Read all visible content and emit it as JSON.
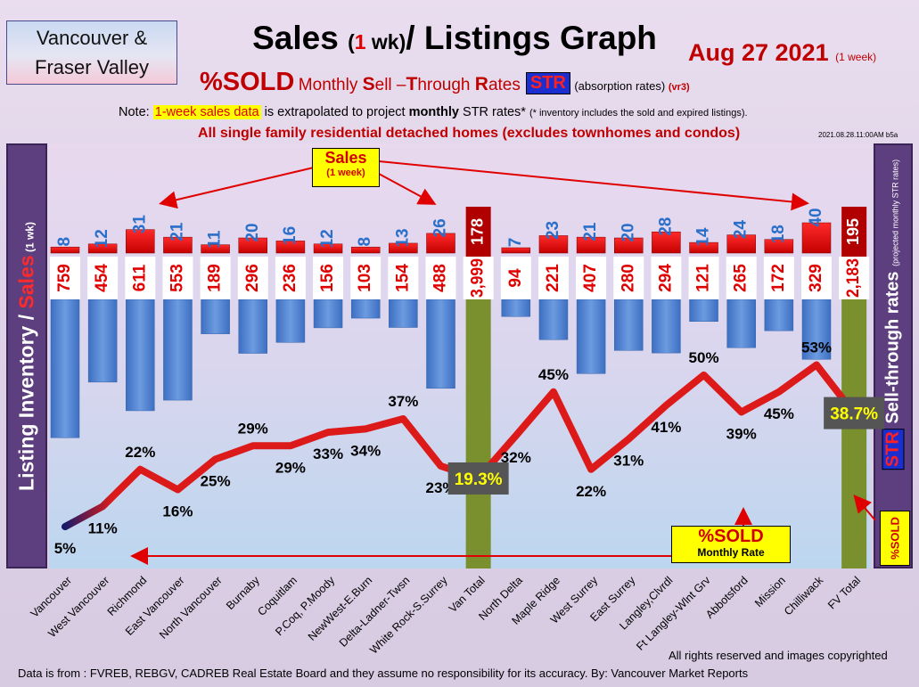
{
  "header": {
    "region_line1": "Vancouver &",
    "region_line2": "Fraser Valley",
    "title_a": "Sales",
    "title_b": "(",
    "title_c": "1",
    "title_d": " wk)",
    "title_e": "/ Listings Graph",
    "date": "Aug 27  2021",
    "date_note": "(1 week)",
    "subtitle_a": "%SOLD",
    "subtitle_b": "Monthly ",
    "subtitle_c": "S",
    "subtitle_d": "ell –",
    "subtitle_e": "T",
    "subtitle_f": "hrough ",
    "subtitle_g": "R",
    "subtitle_h": "ates",
    "str_badge": "STR",
    "absorb": "(absorption rates)",
    "version": "(vr3)",
    "note_a": "Note: ",
    "note_b": "1-week sales data",
    "note_c": " is extrapolated to project ",
    "note_d": "monthly",
    "note_e": " STR rates* ",
    "note_f": "(* inventory includes the sold and expired listings).",
    "detached": "All single family residential detached homes (excludes townhomes and condos)",
    "stamp": "2021.08.28.11:00AM b5a"
  },
  "side": {
    "left_a": "Listing Inventory ",
    "left_b": "/ ",
    "left_c": "Sales",
    "left_d": " (1 wk)",
    "right_a": "Sell-through rates ",
    "right_b": "(projected monthly STR rates)",
    "right_str": "STR",
    "right_sold": "%SOLD"
  },
  "callouts": {
    "sales_a": "Sales",
    "sales_b": "(1 week)",
    "sold_a": "%SOLD",
    "sold_b": "Monthly Rate"
  },
  "footer": {
    "rights": "All rights reserved and  images copyrighted",
    "source": "Data is from : FVREB, REBGV, CADREB Real Estate Board and they assume no responsibility for its accuracy. By: Vancouver Market Reports"
  },
  "chart_data": {
    "type": "bar",
    "categories": [
      "Vancouver",
      "West Vancouver",
      "Richmond",
      "East Vancouver",
      "North Vancouver",
      "Burnaby",
      "Coquitlam",
      "P.Coq, P.Moody",
      "NewWest-E.Burn",
      "Delta-Ladner-Twsn",
      "White Rock-S.Surrey",
      "Van Total",
      "North Delta",
      "Maple Ridge",
      "West Surrey",
      "East Surrey",
      "Langley,Clvrdl",
      "Ft Langley-Wlnt Grv",
      "Abbotsford",
      "Mission",
      "Chilliwack",
      "FV Total"
    ],
    "sales": [
      8,
      12,
      31,
      21,
      11,
      20,
      16,
      12,
      8,
      13,
      26,
      178,
      7,
      23,
      21,
      20,
      28,
      14,
      24,
      18,
      40,
      195
    ],
    "sales_labels": [
      "8",
      "12",
      "31",
      "21",
      "11",
      "20",
      "16",
      "12",
      "8",
      "13",
      "26",
      "178",
      "7",
      "23",
      "21",
      "20",
      "28",
      "14",
      "24",
      "18",
      "40",
      "195"
    ],
    "listings": [
      759,
      454,
      611,
      553,
      189,
      296,
      236,
      156,
      103,
      154,
      488,
      3999,
      94,
      221,
      407,
      280,
      294,
      121,
      265,
      172,
      329,
      2183
    ],
    "listing_labels": [
      "759",
      "454",
      "611",
      "553",
      "189",
      "296",
      "236",
      "156",
      "103",
      "154",
      "488",
      "3,999",
      "94",
      "221",
      "407",
      "280",
      "294",
      "121",
      "265",
      "172",
      "329",
      "2,183"
    ],
    "pct_sold": [
      5,
      11,
      22,
      16,
      25,
      29,
      29,
      33,
      34,
      37,
      23,
      19.3,
      32,
      45,
      22,
      31,
      41,
      50,
      39,
      45,
      53,
      38.7
    ],
    "pct_labels": [
      "5%",
      "11%",
      "22%",
      "16%",
      "25%",
      "29%",
      "29%",
      "33%",
      "34%",
      "37%",
      "23%",
      "19.3%",
      "32%",
      "45%",
      "22%",
      "31%",
      "41%",
      "50%",
      "39%",
      "45%",
      "53%",
      "38.7%"
    ],
    "totals": [
      "Van Total",
      "FV Total"
    ],
    "colors": {
      "sales": "#ee0000",
      "listings": "#4a7fcf",
      "total": "#7a8f2e",
      "line": "#dd1a1a",
      "total_label_bg": "#555555",
      "total_label_fg": "#ffff00"
    }
  }
}
